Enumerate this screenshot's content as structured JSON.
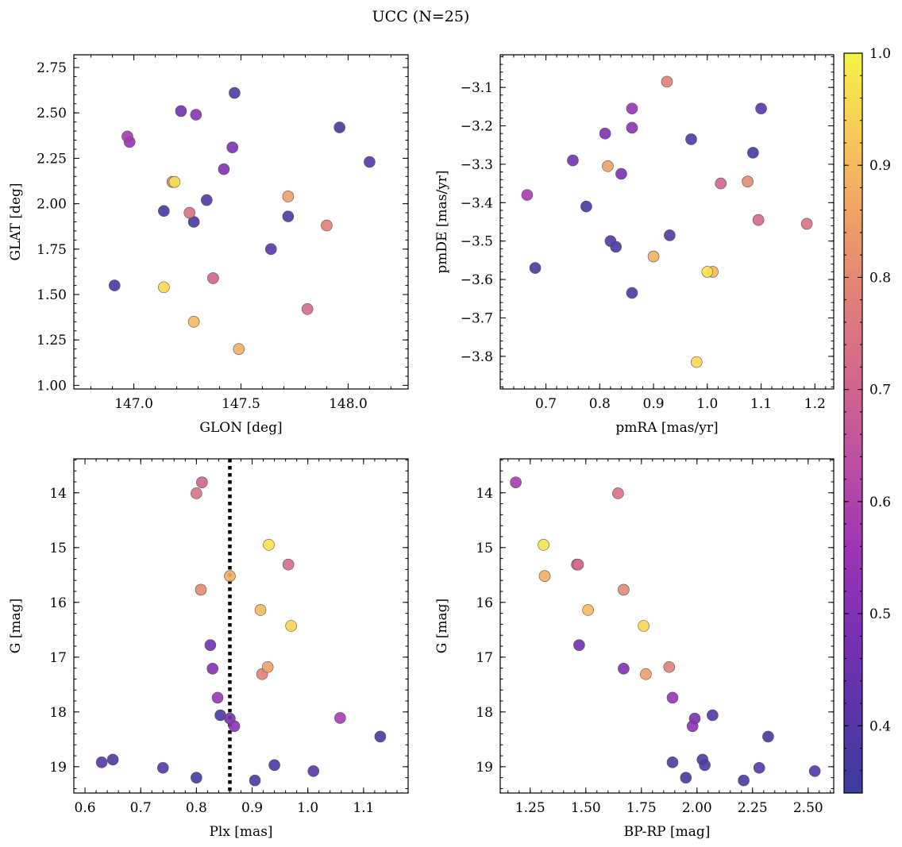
{
  "figure": {
    "title": "UCC (N=25)"
  },
  "colorbar": {
    "range": [
      0.34,
      1.0
    ],
    "ticks": [
      0.4,
      0.5,
      0.6,
      0.7,
      0.8,
      0.9,
      1.0
    ],
    "tick_labels": [
      "0.4",
      "0.5",
      "0.6",
      "0.7",
      "0.8",
      "0.9",
      "1.0"
    ],
    "colormap": "plasma",
    "colormap_stops": [
      "#3a3d9c",
      "#5a35a8",
      "#7b2fb4",
      "#9d35b3",
      "#bb4fa4",
      "#d1668d",
      "#e07f78",
      "#efa066",
      "#f8c85a",
      "#f4f347"
    ]
  },
  "membership_probabilities": [
    0.38,
    0.4,
    0.39,
    0.37,
    0.38,
    0.37,
    0.36,
    0.36,
    0.4,
    0.46,
    0.48,
    0.5,
    0.52,
    0.55,
    0.58,
    0.7,
    0.72,
    0.74,
    0.78,
    0.8,
    0.85,
    0.88,
    0.9,
    0.95,
    0.97
  ],
  "chart_data": [
    {
      "type": "scatter",
      "name": "GLON vs GLAT",
      "xlabel": "GLON [deg]",
      "ylabel": "GLAT [deg]",
      "xlim": [
        146.72,
        148.28
      ],
      "ylim": [
        0.98,
        2.82
      ],
      "y_inverted": false,
      "xticks": [
        147.0,
        147.5,
        148.0
      ],
      "xtick_labels": [
        "147.0",
        "147.5",
        "148.0"
      ],
      "yticks": [
        1.0,
        1.25,
        1.5,
        1.75,
        2.0,
        2.25,
        2.5,
        2.75
      ],
      "ytick_labels": [
        "1.00",
        "1.25",
        "1.50",
        "1.75",
        "2.00",
        "2.25",
        "2.50",
        "2.75"
      ],
      "x": [
        147.47,
        148.1,
        147.34,
        147.28,
        147.72,
        146.91,
        147.96,
        147.14,
        147.64,
        147.22,
        147.46,
        147.42,
        147.29,
        146.98,
        146.97,
        147.37,
        147.81,
        147.26,
        147.9,
        147.18,
        147.72,
        147.49,
        147.28,
        147.14,
        147.19
      ],
      "y": [
        2.61,
        2.23,
        2.02,
        1.9,
        1.93,
        1.55,
        2.42,
        1.96,
        1.75,
        2.51,
        2.31,
        2.19,
        2.49,
        2.34,
        2.37,
        1.59,
        1.42,
        1.95,
        1.88,
        2.12,
        2.04,
        1.2,
        1.35,
        1.54,
        2.12
      ],
      "grid": false
    },
    {
      "type": "scatter",
      "name": "pmRA vs pmDE",
      "xlabel": "pmRA [mas/yr]",
      "ylabel": "pmDE [mas/yr]",
      "xlim": [
        0.615,
        1.235
      ],
      "ylim": [
        -3.885,
        -3.015
      ],
      "y_inverted": false,
      "xticks": [
        0.7,
        0.8,
        0.9,
        1.0,
        1.1,
        1.2
      ],
      "xtick_labels": [
        "0.7",
        "0.8",
        "0.9",
        "1.0",
        "1.1",
        "1.2"
      ],
      "yticks": [
        -3.8,
        -3.7,
        -3.6,
        -3.5,
        -3.4,
        -3.3,
        -3.2,
        -3.1
      ],
      "ytick_labels": [
        "−3.8",
        "−3.7",
        "−3.6",
        "−3.5",
        "−3.4",
        "−3.3",
        "−3.2",
        "−3.1"
      ],
      "x": [
        0.97,
        1.1,
        0.93,
        0.83,
        0.86,
        0.68,
        1.085,
        0.775,
        0.82,
        0.75,
        0.84,
        0.81,
        0.86,
        0.86,
        0.665,
        1.025,
        1.095,
        1.185,
        0.925,
        1.075,
        0.815,
        0.9,
        1.01,
        0.98,
        1.0
      ],
      "y": [
        -3.235,
        -3.155,
        -3.485,
        -3.515,
        -3.635,
        -3.57,
        -3.27,
        -3.41,
        -3.5,
        -3.29,
        -3.325,
        -3.22,
        -3.205,
        -3.155,
        -3.38,
        -3.35,
        -3.445,
        -3.455,
        -3.085,
        -3.345,
        -3.305,
        -3.54,
        -3.58,
        -3.815,
        -3.58
      ],
      "grid": false
    },
    {
      "type": "scatter",
      "name": "Plx vs G",
      "xlabel": "Plx [mas]",
      "ylabel": "G [mag]",
      "xlim": [
        0.58,
        1.18
      ],
      "ylim": [
        19.48,
        13.38
      ],
      "y_inverted": true,
      "xticks": [
        0.6,
        0.7,
        0.8,
        0.9,
        1.0,
        1.1
      ],
      "xtick_labels": [
        "0.6",
        "0.7",
        "0.8",
        "0.9",
        "1.0",
        "1.1"
      ],
      "yticks": [
        14,
        15,
        16,
        17,
        18,
        19
      ],
      "ytick_labels": [
        "14",
        "15",
        "16",
        "17",
        "18",
        "19"
      ],
      "x": [
        0.65,
        0.63,
        0.74,
        0.905,
        0.94,
        0.843,
        1.13,
        0.8,
        1.01,
        0.825,
        0.86,
        0.829,
        0.868,
        0.838,
        1.058,
        0.81,
        0.965,
        0.8,
        0.918,
        0.808,
        0.928,
        0.86,
        0.915,
        0.97,
        0.93
      ],
      "y": [
        18.87,
        18.92,
        19.02,
        19.25,
        18.97,
        18.06,
        18.45,
        19.2,
        19.08,
        16.78,
        18.12,
        17.21,
        18.26,
        17.74,
        18.11,
        13.81,
        15.31,
        14.01,
        17.31,
        15.77,
        17.18,
        15.52,
        16.14,
        16.43,
        14.95
      ],
      "vline": 0.86,
      "grid": false
    },
    {
      "type": "scatter",
      "name": "BP-RP vs G",
      "xlabel": "BP-RP [mag]",
      "ylabel": "G [mag]",
      "xlim": [
        1.115,
        2.615
      ],
      "ylim": [
        19.48,
        13.38
      ],
      "y_inverted": true,
      "xticks": [
        1.25,
        1.5,
        1.75,
        2.0,
        2.25,
        2.5
      ],
      "xtick_labels": [
        "1.25",
        "1.50",
        "1.75",
        "2.00",
        "2.25",
        "2.50"
      ],
      "yticks": [
        14,
        15,
        16,
        17,
        18,
        19
      ],
      "ytick_labels": [
        "14",
        "15",
        "16",
        "17",
        "18",
        "19"
      ],
      "x": [
        2.025,
        2.28,
        2.07,
        2.21,
        1.89,
        2.035,
        2.32,
        1.95,
        2.53,
        1.47,
        1.99,
        1.67,
        1.98,
        1.89,
        1.185,
        1.46,
        1.465,
        1.645,
        1.875,
        1.67,
        1.77,
        1.315,
        1.51,
        1.76,
        1.31
      ],
      "y": [
        18.87,
        19.02,
        18.06,
        19.25,
        18.92,
        18.97,
        18.45,
        19.2,
        19.08,
        16.78,
        18.12,
        17.21,
        18.26,
        17.74,
        13.81,
        15.31,
        15.31,
        14.01,
        17.18,
        15.77,
        17.31,
        15.52,
        16.14,
        16.43,
        14.95
      ],
      "grid": false
    }
  ]
}
